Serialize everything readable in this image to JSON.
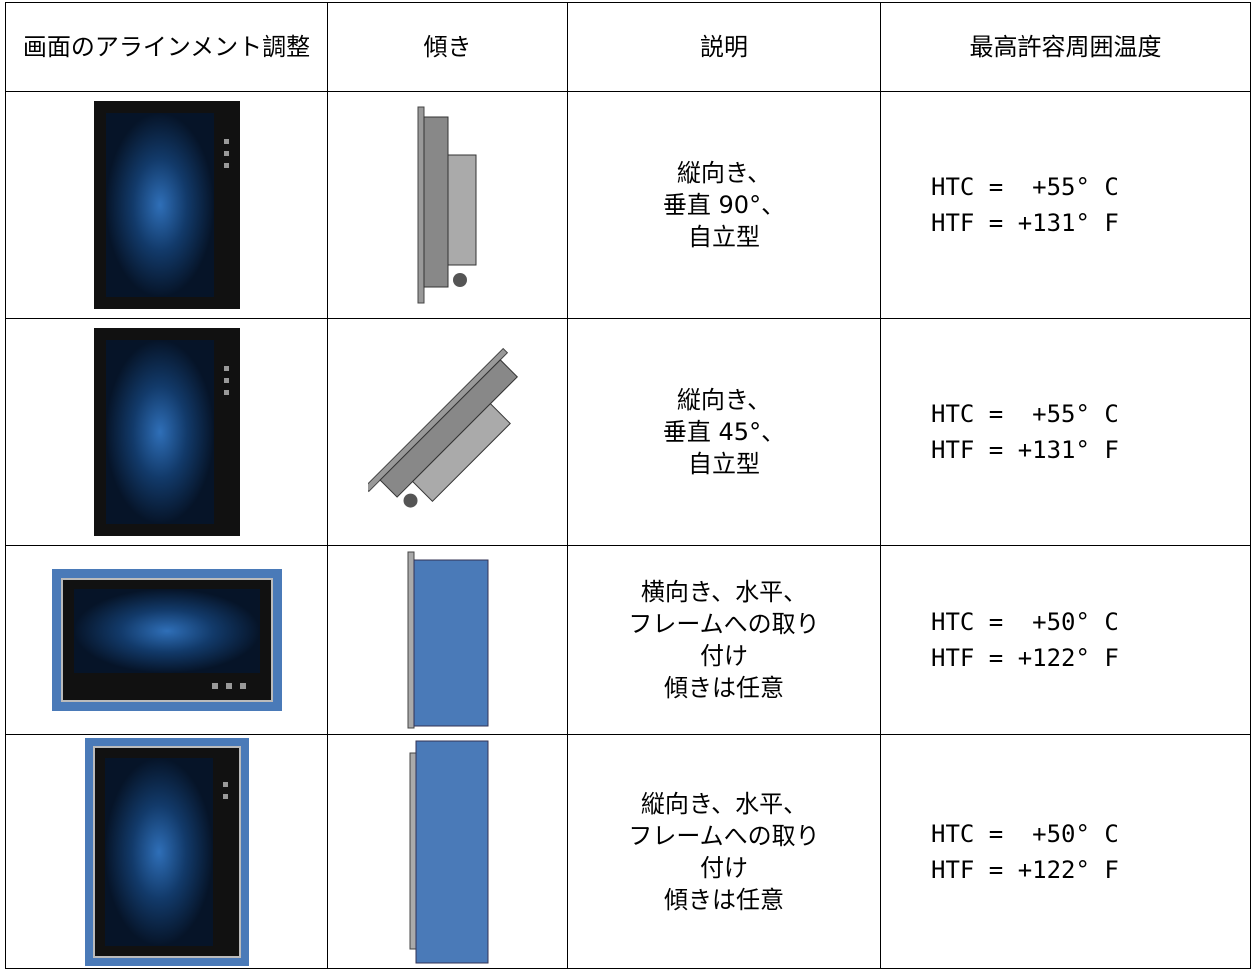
{
  "table": {
    "header": [
      "画面のアラインメント調整",
      "傾き",
      "説明",
      "最高許容周囲温度"
    ],
    "rows": [
      {
        "description": [
          "縦向き、",
          "垂直 90°、",
          "自立型"
        ],
        "temperature": [
          "HTC =  +55° C",
          "HTF = +131° F"
        ]
      },
      {
        "description": [
          "縦向き、",
          "垂直 45°、",
          "自立型"
        ],
        "temperature": [
          "HTC =  +55° C",
          "HTF = +131° F"
        ]
      },
      {
        "description": [
          "横向き、水平、",
          "フレームへの取り",
          "付け",
          "傾きは任意"
        ],
        "temperature": [
          "HTC =  +50° C",
          "HTF = +122° F"
        ]
      },
      {
        "description": [
          "縦向き、水平、",
          "フレームへの取り",
          "付け",
          "傾きは任意"
        ],
        "temperature": [
          "HTC =  +50° C",
          "HTF = +122° F"
        ]
      }
    ]
  }
}
